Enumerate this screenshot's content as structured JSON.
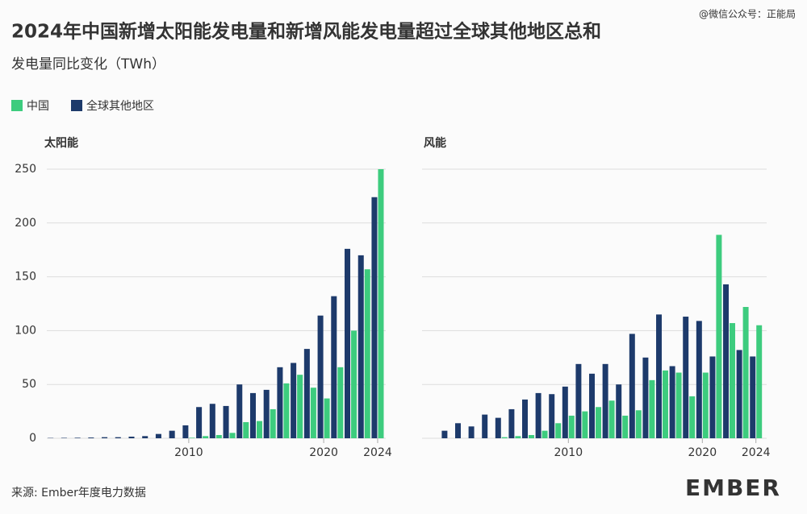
{
  "title": "2024年中国新增太阳能发电量和新增风能发电量超过全球其他地区总和",
  "subtitle": "发电量同比变化（TWh）",
  "watermark": "@微信公众号：正能局",
  "source": "来源: Ember年度电力数据",
  "logo": "EMBER",
  "chart_data": [
    {
      "type": "bar",
      "title": "太阳能",
      "x": [
        2000,
        2001,
        2002,
        2003,
        2004,
        2005,
        2006,
        2007,
        2008,
        2009,
        2010,
        2011,
        2012,
        2013,
        2014,
        2015,
        2016,
        2017,
        2018,
        2019,
        2020,
        2021,
        2022,
        2023,
        2024
      ],
      "series": [
        {
          "name": "中国",
          "color": "#3dcc7e",
          "values": [
            null,
            null,
            null,
            null,
            null,
            null,
            null,
            null,
            null,
            null,
            0.5,
            2,
            3,
            5,
            15,
            16,
            27,
            51,
            59,
            47,
            37,
            66,
            100,
            157,
            250
          ]
        },
        {
          "name": "全球其他地区",
          "color": "#1d3a6b",
          "values": [
            0.3,
            0.4,
            0.5,
            0.7,
            1,
            1,
            1.5,
            2,
            4,
            7,
            12,
            29,
            32,
            30,
            50,
            42,
            45,
            66,
            70,
            83,
            114,
            132,
            176,
            170,
            224
          ]
        }
      ],
      "xlim": [
        1999.6,
        2024.6
      ],
      "xticks": [
        2010,
        2020,
        2024
      ],
      "ylim": [
        0,
        250
      ],
      "yticks": [
        0,
        50,
        100,
        150,
        200,
        250
      ],
      "ytick_labels": true,
      "grid": true
    },
    {
      "type": "bar",
      "title": "风能",
      "x": [
        2001,
        2002,
        2003,
        2004,
        2005,
        2006,
        2007,
        2008,
        2009,
        2010,
        2011,
        2012,
        2013,
        2014,
        2015,
        2016,
        2017,
        2018,
        2019,
        2020,
        2021,
        2022,
        2023,
        2024
      ],
      "series": [
        {
          "name": "中国",
          "color": "#3dcc7e",
          "values": [
            null,
            null,
            null,
            null,
            1,
            2,
            3,
            7,
            14,
            21,
            25,
            29,
            35,
            21,
            26,
            54,
            63,
            61,
            39,
            61,
            189,
            107,
            122,
            105
          ]
        },
        {
          "name": "全球其他地区",
          "color": "#1d3a6b",
          "values": [
            7,
            14,
            11,
            22,
            19,
            27,
            36,
            42,
            41,
            48,
            69,
            60,
            69,
            50,
            97,
            75,
            115,
            67,
            113,
            109,
            76,
            143,
            82,
            76
          ]
        }
      ],
      "xlim": [
        1999.2,
        2024.8
      ],
      "xticks": [
        2010,
        2020,
        2024
      ],
      "ylim": [
        0,
        250
      ],
      "yticks": [
        0,
        50,
        100,
        150,
        200,
        250
      ],
      "ytick_labels": false,
      "grid": true
    }
  ]
}
